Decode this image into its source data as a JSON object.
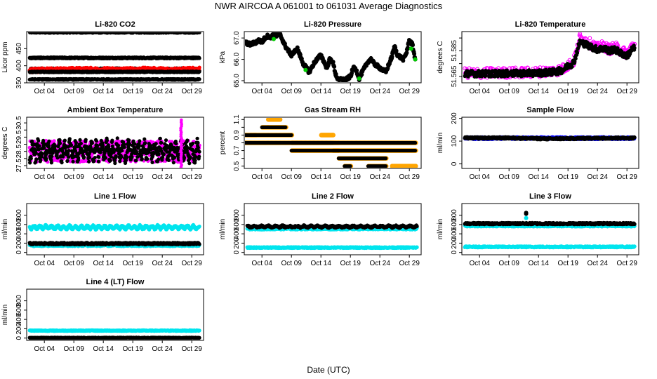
{
  "figure": {
    "title": "NWR   AIRCOA A   061001 to 061031   Average Diagnostics",
    "xlabel": "Date (UTC)"
  },
  "colors": {
    "black": "#000000",
    "red": "#ff0000",
    "magenta": "#ff00ff",
    "green": "#00cc00",
    "orange": "#ffa500",
    "cyan": "#00e5ee",
    "blue": "#0000ff"
  },
  "chart_data": [
    {
      "type": "scatter",
      "title": "Li-820 CO2",
      "ylabel": "Licor ppm",
      "xlim": [
        1,
        31
      ],
      "x_ticks": [
        "Oct 04",
        "Oct 09",
        "Oct 14",
        "Oct 19",
        "Oct 24",
        "Oct 29"
      ],
      "ylim": [
        350,
        500
      ],
      "y_ticks": [
        "350",
        "400",
        "450"
      ],
      "series": [
        {
          "color": "black",
          "kind": "band",
          "center": [
            498,
            498
          ],
          "spread": 2
        },
        {
          "color": "black",
          "kind": "band",
          "center": [
            423,
            423
          ],
          "spread": 2
        },
        {
          "color": "black",
          "kind": "band",
          "center": [
            389,
            389
          ],
          "spread": 4
        },
        {
          "color": "red",
          "kind": "band",
          "center": [
            386,
            388,
            389,
            388,
            389,
            388,
            389
          ],
          "spread": 6
        },
        {
          "color": "black",
          "kind": "band",
          "center": [
            382,
            382
          ],
          "spread": 1.5
        },
        {
          "color": "black",
          "kind": "band",
          "center": [
            360,
            360
          ],
          "spread": 1.5
        }
      ]
    },
    {
      "type": "line",
      "title": "Li-820 Pressure",
      "ylabel": "kPa",
      "xlim": [
        1,
        31
      ],
      "x_ticks": [
        "Oct 04",
        "Oct 09",
        "Oct 14",
        "Oct 19",
        "Oct 24",
        "Oct 29"
      ],
      "ylim": [
        64.9,
        67.3
      ],
      "y_ticks": [
        "65.0",
        "66.0",
        "67.0"
      ],
      "series": [
        {
          "color": "black",
          "kind": "line",
          "x": [
            1,
            2,
            3,
            3.5,
            4,
            4.5,
            5,
            5.5,
            6,
            6.5,
            7,
            8,
            9,
            10,
            11,
            12,
            13,
            14,
            15,
            15.5,
            16,
            16.5,
            17,
            17.5,
            18,
            19,
            19.5,
            20,
            20.5,
            21,
            22,
            22.5,
            23,
            24,
            25,
            26,
            26.5,
            27,
            28,
            28.5,
            29,
            29.5,
            30
          ],
          "y": [
            66.8,
            66.7,
            66.8,
            66.9,
            66.8,
            67.0,
            67.1,
            67.0,
            67.2,
            67.1,
            67.2,
            66.6,
            66.2,
            66.5,
            65.8,
            65.4,
            65.9,
            66.2,
            65.6,
            66.0,
            65.9,
            65.3,
            65.0,
            65.1,
            65.0,
            65.2,
            65.6,
            65.5,
            65.1,
            65.4,
            65.9,
            66.0,
            65.8,
            65.6,
            65.4,
            66.1,
            66.6,
            66.2,
            66.0,
            66.3,
            66.9,
            66.7,
            66.0
          ],
          "spread": 0.08
        },
        {
          "color": "green",
          "kind": "points",
          "x": [
            6.0,
            11.4,
            20.5,
            29.3,
            30.0
          ],
          "y": [
            66.95,
            65.5,
            65.1,
            66.5,
            66.0
          ]
        }
      ]
    },
    {
      "type": "scatter",
      "title": "Li-820 Temperature",
      "ylabel": "degrees C",
      "xlim": [
        1,
        31
      ],
      "x_ticks": [
        "Oct 04",
        "Oct 09",
        "Oct 14",
        "Oct 19",
        "Oct 24",
        "Oct 29"
      ],
      "ylim": [
        51.56,
        51.6
      ],
      "y_ticks": [
        "51.565",
        "51.585"
      ],
      "y_ticks_minor": [
        "51.575",
        "51.595"
      ],
      "series": [
        {
          "color": "magenta",
          "kind": "scatterband",
          "x": [
            2,
            4,
            6,
            8,
            10,
            12,
            14,
            15,
            16,
            17,
            18,
            18.5,
            19,
            19.5,
            20,
            20.5,
            21,
            22,
            23,
            24,
            25,
            26,
            27,
            28,
            29,
            30
          ],
          "y": [
            51.5675,
            51.5675,
            51.5678,
            51.5678,
            51.568,
            51.568,
            51.5683,
            51.5688,
            51.569,
            51.5695,
            51.5705,
            51.572,
            51.574,
            51.575,
            51.577,
            51.585,
            51.595,
            51.593,
            51.59,
            51.587,
            51.589,
            51.586,
            51.588,
            51.585,
            51.583,
            51.589
          ],
          "spread": 0.004
        },
        {
          "color": "black",
          "kind": "band",
          "x": [
            2,
            4,
            6,
            8,
            10,
            12,
            14,
            16,
            17,
            18,
            18.5,
            19,
            19.5,
            20,
            20.5,
            21,
            22,
            23,
            24,
            25,
            26,
            27,
            28,
            29,
            30
          ],
          "center": [
            51.5672,
            51.5672,
            51.5672,
            51.5673,
            51.5674,
            51.5675,
            51.5677,
            51.5682,
            51.5688,
            51.5698,
            51.5712,
            51.5735,
            51.5742,
            51.5762,
            51.584,
            51.592,
            51.59,
            51.588,
            51.586,
            51.587,
            51.585,
            51.586,
            51.583,
            51.581,
            51.587
          ],
          "spread": 0.0025
        }
      ]
    },
    {
      "type": "scatter",
      "title": "Ambient Box Temperature",
      "ylabel": "degrees C",
      "xlim": [
        1,
        31
      ],
      "x_ticks": [
        "Oct 04",
        "Oct 09",
        "Oct 14",
        "Oct 19",
        "Oct 24",
        "Oct 29"
      ],
      "ylim": [
        27.3,
        30.9
      ],
      "y_ticks": [
        "27.5",
        "28.5",
        "29.5",
        "30.5"
      ],
      "y_ticks_minor": [
        "28.0",
        "29.0",
        "30.0"
      ],
      "series": [
        {
          "color": "magenta",
          "kind": "band",
          "center": [
            28.5,
            28.5
          ],
          "spread": 0.75
        },
        {
          "color": "black",
          "kind": "oscill",
          "center": 28.55,
          "amp": 0.45,
          "period": 0.9,
          "spread": 0.45
        },
        {
          "color": "magenta",
          "kind": "spike",
          "x": 27.2,
          "y": [
            27.4,
            30.7
          ]
        }
      ]
    },
    {
      "type": "scatter",
      "title": "Gas Stream RH",
      "ylabel": "percent",
      "xlim": [
        1,
        31
      ],
      "x_ticks": [
        "Oct 04",
        "Oct 09",
        "Oct 14",
        "Oct 19",
        "Oct 24",
        "Oct 29"
      ],
      "ylim": [
        0.47,
        1.13
      ],
      "y_ticks": [
        "0.5",
        "0.7",
        "0.9",
        "1.1"
      ],
      "y_ticks_minor": [
        "0.6",
        "0.8",
        "1.0"
      ],
      "series": [
        {
          "color": "orange",
          "kind": "steps",
          "segments": [
            [
              1,
              3,
              0.9
            ],
            [
              1,
              30,
              0.8
            ],
            [
              2,
              9,
              0.9
            ],
            [
              4,
              8,
              1.0
            ],
            [
              5,
              7,
              1.1
            ],
            [
              9,
              16,
              0.8
            ],
            [
              9,
              17,
              0.7
            ],
            [
              14,
              16,
              0.9
            ],
            [
              16,
              17,
              0.8
            ],
            [
              16,
              30,
              0.7
            ],
            [
              17,
              25,
              0.6
            ],
            [
              18,
              19,
              0.5
            ],
            [
              22,
              25,
              0.5
            ],
            [
              26,
              30,
              0.5
            ]
          ]
        },
        {
          "color": "black",
          "kind": "steps",
          "segments": [
            [
              1,
              3,
              0.9
            ],
            [
              1,
              30,
              0.8
            ],
            [
              2,
              9,
              0.9
            ],
            [
              4,
              8,
              1.0
            ],
            [
              9,
              16,
              0.8
            ],
            [
              9,
              17,
              0.7
            ],
            [
              16,
              30,
              0.7
            ],
            [
              17,
              25,
              0.6
            ],
            [
              18,
              19,
              0.5
            ],
            [
              22,
              25,
              0.5
            ]
          ]
        }
      ]
    },
    {
      "type": "scatter",
      "title": "Sample Flow",
      "ylabel": "ml/min",
      "xlim": [
        1,
        31
      ],
      "x_ticks": [
        "Oct 04",
        "Oct 09",
        "Oct 14",
        "Oct 19",
        "Oct 24",
        "Oct 29"
      ],
      "ylim": [
        -20,
        205
      ],
      "y_ticks": [
        "0",
        "100",
        "200"
      ],
      "series": [
        {
          "color": "blue",
          "kind": "band",
          "center": [
            113,
            113
          ],
          "spread": 5
        },
        {
          "color": "black",
          "kind": "band",
          "center": [
            114,
            114,
            110,
            113,
            114
          ],
          "spread": 4
        }
      ]
    },
    {
      "type": "scatter",
      "title": "Line 1 Flow",
      "ylabel": "ml/min",
      "xlim": [
        1,
        31
      ],
      "x_ticks": [
        "Oct 04",
        "Oct 09",
        "Oct 14",
        "Oct 19",
        "Oct 24",
        "Oct 29"
      ],
      "ylim": [
        -50,
        1050
      ],
      "y_ticks": [
        "0",
        "200",
        "400",
        "600",
        "800"
      ],
      "series": [
        {
          "color": "cyan",
          "kind": "oscill",
          "center": 540,
          "amp": 30,
          "period": 1.0,
          "spread": 25
        },
        {
          "color": "cyan",
          "kind": "band",
          "center": [
            150,
            150
          ],
          "spread": 18
        },
        {
          "color": "black",
          "kind": "band",
          "center": [
            190,
            190
          ],
          "spread": 20
        }
      ]
    },
    {
      "type": "scatter",
      "title": "Line 2 Flow",
      "ylabel": "ml/min",
      "xlim": [
        1,
        31
      ],
      "x_ticks": [
        "Oct 04",
        "Oct 09",
        "Oct 14",
        "Oct 19",
        "Oct 24",
        "Oct 29"
      ],
      "ylim": [
        -50,
        1050
      ],
      "y_ticks": [
        "0",
        "200",
        "400",
        "600",
        "800"
      ],
      "series": [
        {
          "color": "cyan",
          "kind": "band",
          "center": [
            510,
            510
          ],
          "spread": 20
        },
        {
          "color": "cyan",
          "kind": "band",
          "center": [
            105,
            105
          ],
          "spread": 12
        },
        {
          "color": "black",
          "kind": "oscill",
          "center": 555,
          "amp": 15,
          "period": 1.2,
          "spread": 18
        }
      ]
    },
    {
      "type": "scatter",
      "title": "Line 3 Flow",
      "ylabel": "ml/min",
      "xlim": [
        1,
        31
      ],
      "x_ticks": [
        "Oct 04",
        "Oct 09",
        "Oct 14",
        "Oct 19",
        "Oct 24",
        "Oct 29"
      ],
      "ylim": [
        -50,
        1050
      ],
      "y_ticks": [
        "0",
        "200",
        "400",
        "600",
        "800"
      ],
      "series": [
        {
          "color": "cyan",
          "kind": "band",
          "center": [
            570,
            570
          ],
          "spread": 15
        },
        {
          "color": "cyan",
          "kind": "band",
          "center": [
            120,
            120
          ],
          "spread": 14
        },
        {
          "color": "black",
          "kind": "band",
          "center": [
            620,
            620
          ],
          "spread": 18
        },
        {
          "color": "cyan",
          "kind": "points",
          "x": [
            11.9
          ],
          "y": [
            740
          ]
        },
        {
          "color": "black",
          "kind": "points",
          "x": [
            11.9,
            11.9
          ],
          "y": [
            830,
            850
          ]
        }
      ]
    },
    {
      "type": "scatter",
      "title": "Line 4 (LT) Flow",
      "ylabel": "ml/min",
      "xlim": [
        1,
        31
      ],
      "x_ticks": [
        "Oct 04",
        "Oct 09",
        "Oct 14",
        "Oct 19",
        "Oct 24",
        "Oct 29"
      ],
      "ylim": [
        -50,
        1050
      ],
      "y_ticks": [
        "0",
        "200",
        "400",
        "600",
        "800"
      ],
      "series": [
        {
          "color": "cyan",
          "kind": "band",
          "center": [
            160,
            160
          ],
          "spread": 10
        },
        {
          "color": "black",
          "kind": "band",
          "center": [
            5,
            5
          ],
          "spread": 8
        }
      ]
    }
  ]
}
